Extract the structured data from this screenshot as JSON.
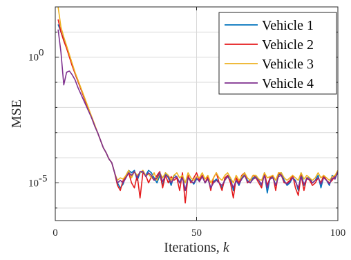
{
  "chart_data": {
    "type": "line",
    "xlabel": "Iterations, ",
    "xlabel_var": "k",
    "ylabel": "MSE",
    "x_scale": "linear",
    "y_scale": "log",
    "xlim": [
      0,
      100
    ],
    "ylim_exp": [
      -6.5,
      2
    ],
    "x_ticks": [
      0,
      50,
      100
    ],
    "x_tick_labels": [
      "0",
      "50",
      "100"
    ],
    "y_ticks_exp": [
      0,
      -5
    ],
    "y_tick_labels": [
      {
        "base": "10",
        "exp": "0"
      },
      {
        "base": "10",
        "exp": "-5"
      }
    ],
    "grid": true,
    "legend_position": "top-right",
    "series": [
      {
        "name": "Vehicle 1",
        "color": "#0072BD",
        "x": [
          1,
          2,
          3,
          4,
          5,
          6,
          7,
          8,
          9,
          10,
          11,
          12,
          13,
          14,
          15,
          16,
          17,
          18,
          19,
          20,
          21,
          22,
          23,
          24,
          25,
          26,
          27,
          28,
          29,
          30,
          31,
          32,
          33,
          34,
          35,
          36,
          37,
          38,
          39,
          40,
          41,
          42,
          43,
          44,
          45,
          46,
          47,
          48,
          49,
          50,
          51,
          52,
          53,
          54,
          55,
          56,
          57,
          58,
          59,
          60,
          61,
          62,
          63,
          64,
          65,
          66,
          67,
          68,
          69,
          70,
          71,
          72,
          73,
          74,
          75,
          76,
          77,
          78,
          79,
          80,
          81,
          82,
          83,
          84,
          85,
          86,
          87,
          88,
          89,
          90,
          91,
          92,
          93,
          94,
          95,
          96,
          97,
          98,
          99,
          100
        ],
        "y_exp": [
          1.3,
          1.0,
          0.7,
          0.4,
          0.05,
          -0.3,
          -0.65,
          -0.95,
          -1.25,
          -1.55,
          -1.85,
          -2.15,
          -2.45,
          -2.75,
          -3.0,
          -3.3,
          -3.6,
          -3.8,
          -4.05,
          -4.2,
          -4.6,
          -5.0,
          -5.2,
          -5.05,
          -4.7,
          -4.5,
          -4.6,
          -4.5,
          -4.9,
          -4.6,
          -4.55,
          -4.7,
          -4.5,
          -4.6,
          -4.8,
          -5.0,
          -4.7,
          -5.1,
          -4.6,
          -4.8,
          -5.1,
          -4.7,
          -4.75,
          -5.0,
          -4.7,
          -5.3,
          -4.75,
          -4.9,
          -5.05,
          -4.85,
          -4.9,
          -4.7,
          -5.0,
          -4.8,
          -5.2,
          -4.95,
          -4.85,
          -5.0,
          -5.2,
          -4.9,
          -4.7,
          -4.8,
          -5.3,
          -4.9,
          -5.1,
          -4.8,
          -4.6,
          -4.9,
          -5.0,
          -4.8,
          -4.75,
          -4.9,
          -5.1,
          -4.6,
          -5.4,
          -4.8,
          -4.75,
          -5.1,
          -4.7,
          -4.6,
          -4.9,
          -5.1,
          -5.0,
          -4.8,
          -4.9,
          -5.3,
          -4.6,
          -5.1,
          -4.8,
          -4.8,
          -5.0,
          -4.9,
          -4.7,
          -5.2,
          -4.75,
          -4.9,
          -5.1,
          -4.7,
          -4.8,
          -4.6
        ]
      },
      {
        "name": "Vehicle 2",
        "color": "#E41A1C",
        "x": [
          1,
          2,
          3,
          4,
          5,
          6,
          7,
          8,
          9,
          10,
          11,
          12,
          13,
          14,
          15,
          16,
          17,
          18,
          19,
          20,
          21,
          22,
          23,
          24,
          25,
          26,
          27,
          28,
          29,
          30,
          31,
          32,
          33,
          34,
          35,
          36,
          37,
          38,
          39,
          40,
          41,
          42,
          43,
          44,
          45,
          46,
          47,
          48,
          49,
          50,
          51,
          52,
          53,
          54,
          55,
          56,
          57,
          58,
          59,
          60,
          61,
          62,
          63,
          64,
          65,
          66,
          67,
          68,
          69,
          70,
          71,
          72,
          73,
          74,
          75,
          76,
          77,
          78,
          79,
          80,
          81,
          82,
          83,
          84,
          85,
          86,
          87,
          88,
          89,
          90,
          91,
          92,
          93,
          94,
          95,
          96,
          97,
          98,
          99,
          100
        ],
        "y_exp": [
          1.5,
          1.0,
          0.65,
          0.35,
          0.0,
          -0.35,
          -0.65,
          -0.95,
          -1.25,
          -1.55,
          -1.85,
          -2.15,
          -2.45,
          -2.75,
          -3.0,
          -3.3,
          -3.6,
          -3.8,
          -4.05,
          -4.2,
          -4.6,
          -5.1,
          -5.3,
          -4.9,
          -4.75,
          -4.6,
          -5.0,
          -5.2,
          -4.7,
          -5.6,
          -4.6,
          -4.7,
          -5.0,
          -4.75,
          -4.9,
          -4.7,
          -4.55,
          -5.2,
          -4.7,
          -5.0,
          -4.75,
          -4.9,
          -4.8,
          -5.3,
          -4.6,
          -5.8,
          -4.7,
          -5.0,
          -4.8,
          -4.6,
          -4.9,
          -4.7,
          -5.0,
          -4.75,
          -5.3,
          -4.8,
          -4.6,
          -5.0,
          -5.3,
          -4.8,
          -4.7,
          -5.0,
          -5.6,
          -4.8,
          -5.0,
          -4.7,
          -4.6,
          -5.0,
          -4.9,
          -4.7,
          -4.8,
          -5.0,
          -5.2,
          -4.6,
          -5.1,
          -4.8,
          -4.7,
          -5.3,
          -4.6,
          -4.7,
          -5.0,
          -5.0,
          -4.9,
          -4.7,
          -5.2,
          -5.5,
          -4.7,
          -5.3,
          -4.8,
          -4.9,
          -5.1,
          -5.0,
          -4.8,
          -5.0,
          -4.7,
          -4.9,
          -5.0,
          -4.9,
          -4.7,
          -4.6
        ]
      },
      {
        "name": "Vehicle 3",
        "color": "#EDB120",
        "x": [
          1,
          2,
          3,
          4,
          5,
          6,
          7,
          8,
          9,
          10,
          11,
          12,
          13,
          14,
          15,
          16,
          17,
          18,
          19,
          20,
          21,
          22,
          23,
          24,
          25,
          26,
          27,
          28,
          29,
          30,
          31,
          32,
          33,
          34,
          35,
          36,
          37,
          38,
          39,
          40,
          41,
          42,
          43,
          44,
          45,
          46,
          47,
          48,
          49,
          50,
          51,
          52,
          53,
          54,
          55,
          56,
          57,
          58,
          59,
          60,
          61,
          62,
          63,
          64,
          65,
          66,
          67,
          68,
          69,
          70,
          71,
          72,
          73,
          74,
          75,
          76,
          77,
          78,
          79,
          80,
          81,
          82,
          83,
          84,
          85,
          86,
          87,
          88,
          89,
          90,
          91,
          92,
          93,
          94,
          95,
          96,
          97,
          98,
          99,
          100
        ],
        "y_exp": [
          2.0,
          1.2,
          0.8,
          0.45,
          0.1,
          -0.25,
          -0.6,
          -0.9,
          -1.2,
          -1.5,
          -1.8,
          -2.1,
          -2.4,
          -2.7,
          -3.0,
          -3.3,
          -3.6,
          -3.8,
          -4.05,
          -4.2,
          -4.6,
          -4.9,
          -4.8,
          -4.85,
          -4.7,
          -4.5,
          -4.8,
          -4.55,
          -4.7,
          -4.6,
          -4.5,
          -4.7,
          -4.65,
          -4.8,
          -4.6,
          -4.9,
          -4.6,
          -4.8,
          -4.6,
          -4.7,
          -4.9,
          -4.7,
          -4.6,
          -4.8,
          -4.7,
          -5.0,
          -4.6,
          -4.8,
          -4.9,
          -4.75,
          -4.8,
          -4.6,
          -4.85,
          -4.7,
          -5.0,
          -4.8,
          -4.6,
          -4.8,
          -4.9,
          -4.7,
          -4.6,
          -4.8,
          -5.0,
          -4.7,
          -4.9,
          -4.75,
          -4.6,
          -4.8,
          -4.9,
          -4.7,
          -4.7,
          -4.85,
          -4.9,
          -4.6,
          -4.8,
          -4.75,
          -4.7,
          -4.9,
          -4.6,
          -4.6,
          -4.8,
          -4.9,
          -4.8,
          -4.7,
          -4.8,
          -4.9,
          -4.6,
          -4.85,
          -4.7,
          -4.8,
          -4.9,
          -4.8,
          -4.6,
          -4.8,
          -4.7,
          -4.8,
          -4.9,
          -4.75,
          -4.7,
          -4.5
        ]
      },
      {
        "name": "Vehicle 4",
        "color": "#7E2F8E",
        "x": [
          1,
          2,
          3,
          4,
          5,
          6,
          7,
          8,
          9,
          10,
          11,
          12,
          13,
          14,
          15,
          16,
          17,
          18,
          19,
          20,
          21,
          22,
          23,
          24,
          25,
          26,
          27,
          28,
          29,
          30,
          31,
          32,
          33,
          34,
          35,
          36,
          37,
          38,
          39,
          40,
          41,
          42,
          43,
          44,
          45,
          46,
          47,
          48,
          49,
          50,
          51,
          52,
          53,
          54,
          55,
          56,
          57,
          58,
          59,
          60,
          61,
          62,
          63,
          64,
          65,
          66,
          67,
          68,
          69,
          70,
          71,
          72,
          73,
          74,
          75,
          76,
          77,
          78,
          79,
          80,
          81,
          82,
          83,
          84,
          85,
          86,
          87,
          88,
          89,
          90,
          91,
          92,
          93,
          94,
          95,
          96,
          97,
          98,
          99,
          100
        ],
        "y_exp": [
          1.1,
          0.2,
          -1.1,
          -0.6,
          -0.55,
          -0.7,
          -0.9,
          -1.2,
          -1.45,
          -1.7,
          -1.95,
          -2.2,
          -2.45,
          -2.75,
          -3.0,
          -3.3,
          -3.6,
          -3.8,
          -4.05,
          -4.2,
          -4.6,
          -5.0,
          -4.9,
          -5.0,
          -4.8,
          -4.6,
          -4.7,
          -4.55,
          -4.8,
          -4.55,
          -4.55,
          -4.75,
          -4.6,
          -4.7,
          -4.9,
          -4.8,
          -4.6,
          -4.95,
          -4.7,
          -4.75,
          -5.0,
          -4.8,
          -4.75,
          -5.0,
          -4.8,
          -5.3,
          -4.8,
          -4.95,
          -5.0,
          -4.8,
          -4.95,
          -4.75,
          -5.0,
          -4.85,
          -5.2,
          -5.0,
          -4.9,
          -5.0,
          -5.1,
          -4.9,
          -4.75,
          -4.9,
          -5.2,
          -4.9,
          -5.05,
          -4.85,
          -4.7,
          -4.95,
          -5.0,
          -4.85,
          -4.8,
          -4.9,
          -5.05,
          -4.7,
          -5.2,
          -4.85,
          -4.8,
          -5.1,
          -4.75,
          -4.7,
          -4.95,
          -5.05,
          -4.95,
          -4.8,
          -4.95,
          -5.2,
          -4.75,
          -5.05,
          -4.85,
          -4.85,
          -5.0,
          -4.9,
          -4.8,
          -5.05,
          -4.8,
          -4.9,
          -5.05,
          -4.8,
          -4.85,
          -4.55
        ]
      }
    ]
  }
}
